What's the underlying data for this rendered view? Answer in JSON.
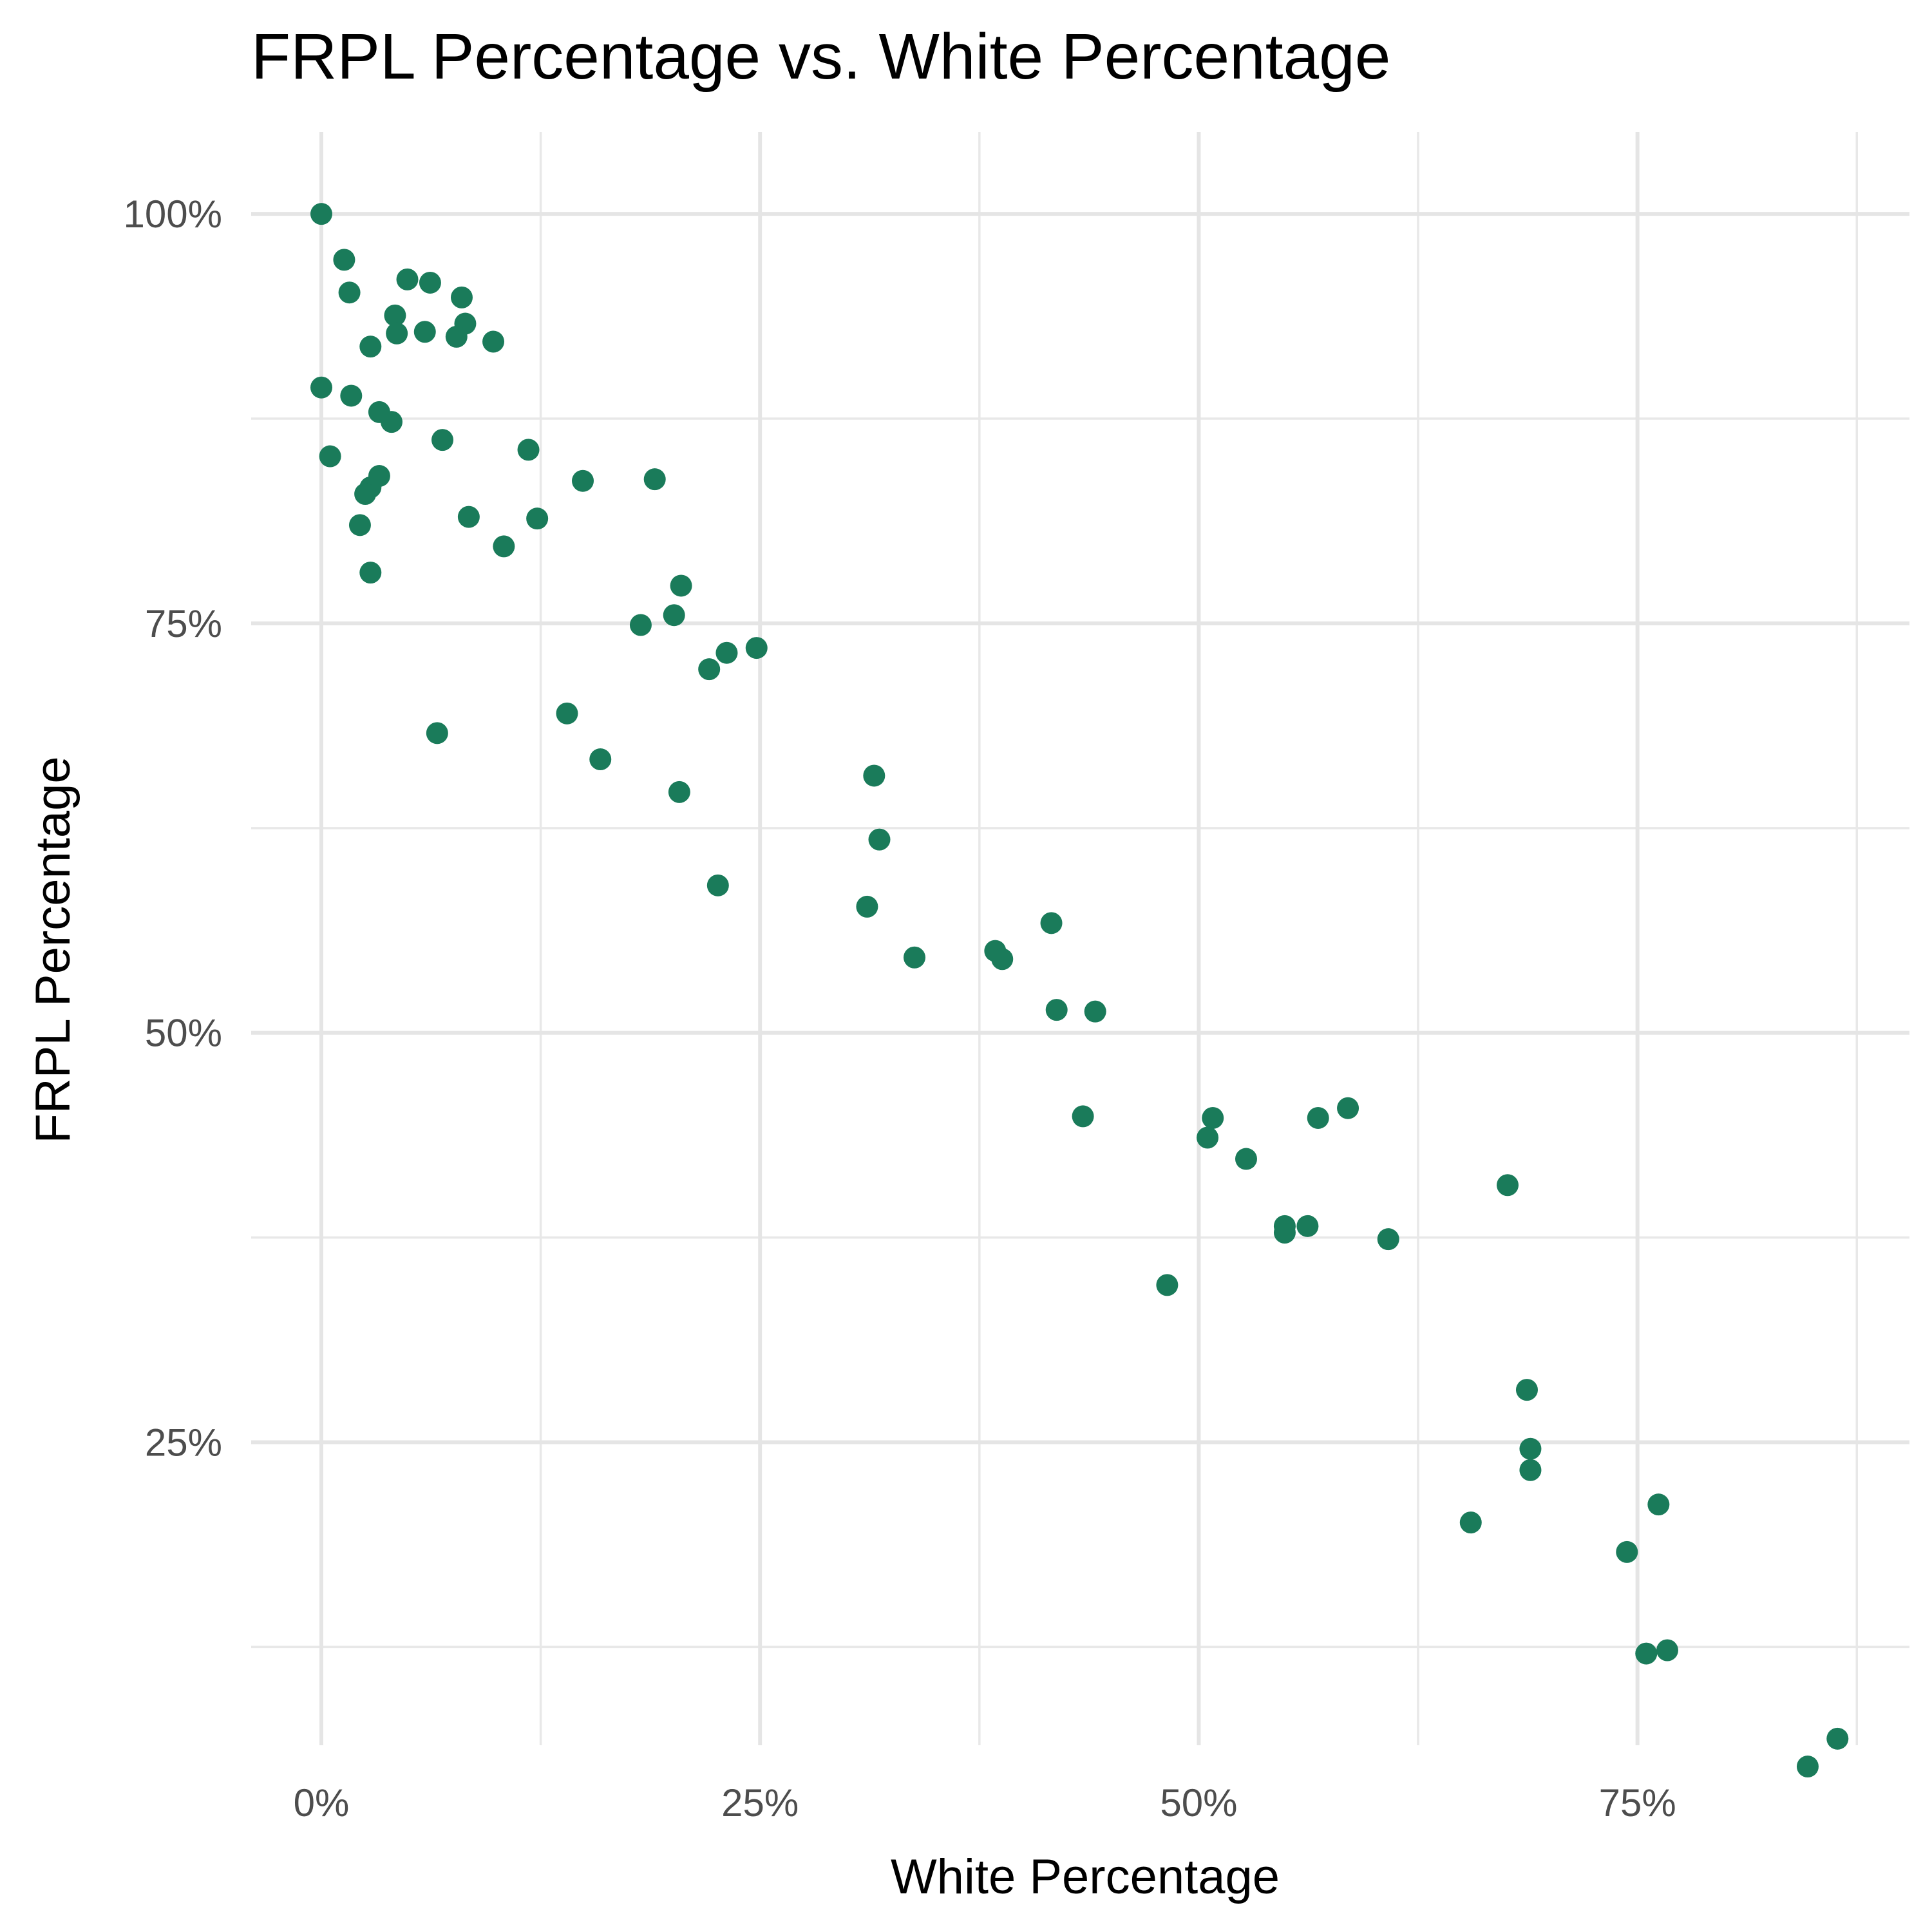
{
  "chart_data": {
    "type": "scatter",
    "title": "FRPL Percentage vs. White Percentage",
    "xlabel": "White Percentage",
    "ylabel": "FRPL Percentage",
    "xlim": [
      -0.04,
      0.905
    ],
    "ylim": [
      0.065,
      1.05
    ],
    "x_ticks": [
      0,
      0.25,
      0.5,
      0.75
    ],
    "x_tick_labels": [
      "0%",
      "25%",
      "50%",
      "75%"
    ],
    "y_ticks": [
      0.25,
      0.5,
      0.75,
      1.0
    ],
    "y_tick_labels": [
      "25%",
      "50%",
      "75%",
      "100%"
    ],
    "x_minor": [
      0.125,
      0.375,
      0.625,
      0.875
    ],
    "y_minor": [
      0.125,
      0.375,
      0.625,
      0.875
    ],
    "grid": true,
    "legend": "none",
    "point_color": "#1a7b5a",
    "points": [
      {
        "x": 0.0,
        "y": 1.0
      },
      {
        "x": 0.013,
        "y": 0.972
      },
      {
        "x": 0.016,
        "y": 0.952
      },
      {
        "x": 0.049,
        "y": 0.96
      },
      {
        "x": 0.062,
        "y": 0.958
      },
      {
        "x": 0.08,
        "y": 0.949
      },
      {
        "x": 0.042,
        "y": 0.938
      },
      {
        "x": 0.082,
        "y": 0.933
      },
      {
        "x": 0.043,
        "y": 0.927
      },
      {
        "x": 0.059,
        "y": 0.928
      },
      {
        "x": 0.077,
        "y": 0.925
      },
      {
        "x": 0.098,
        "y": 0.922
      },
      {
        "x": 0.028,
        "y": 0.919
      },
      {
        "x": 0.0,
        "y": 0.894
      },
      {
        "x": 0.017,
        "y": 0.889
      },
      {
        "x": 0.033,
        "y": 0.879
      },
      {
        "x": 0.04,
        "y": 0.873
      },
      {
        "x": 0.069,
        "y": 0.862
      },
      {
        "x": 0.118,
        "y": 0.856
      },
      {
        "x": 0.005,
        "y": 0.852
      },
      {
        "x": 0.033,
        "y": 0.84
      },
      {
        "x": 0.149,
        "y": 0.837
      },
      {
        "x": 0.19,
        "y": 0.838
      },
      {
        "x": 0.028,
        "y": 0.833
      },
      {
        "x": 0.025,
        "y": 0.829
      },
      {
        "x": 0.084,
        "y": 0.815
      },
      {
        "x": 0.123,
        "y": 0.814
      },
      {
        "x": 0.022,
        "y": 0.81
      },
      {
        "x": 0.104,
        "y": 0.797
      },
      {
        "x": 0.028,
        "y": 0.781
      },
      {
        "x": 0.205,
        "y": 0.773
      },
      {
        "x": 0.201,
        "y": 0.755
      },
      {
        "x": 0.182,
        "y": 0.749
      },
      {
        "x": 0.248,
        "y": 0.735
      },
      {
        "x": 0.231,
        "y": 0.732
      },
      {
        "x": 0.221,
        "y": 0.722
      },
      {
        "x": 0.14,
        "y": 0.695
      },
      {
        "x": 0.066,
        "y": 0.683
      },
      {
        "x": 0.159,
        "y": 0.667
      },
      {
        "x": 0.315,
        "y": 0.657
      },
      {
        "x": 0.204,
        "y": 0.647
      },
      {
        "x": 0.318,
        "y": 0.618
      },
      {
        "x": 0.226,
        "y": 0.59
      },
      {
        "x": 0.311,
        "y": 0.577
      },
      {
        "x": 0.416,
        "y": 0.567
      },
      {
        "x": 0.338,
        "y": 0.546
      },
      {
        "x": 0.384,
        "y": 0.55
      },
      {
        "x": 0.388,
        "y": 0.545
      },
      {
        "x": 0.419,
        "y": 0.514
      },
      {
        "x": 0.441,
        "y": 0.513
      },
      {
        "x": 0.434,
        "y": 0.449
      },
      {
        "x": 0.508,
        "y": 0.448
      },
      {
        "x": 0.505,
        "y": 0.436
      },
      {
        "x": 0.568,
        "y": 0.448
      },
      {
        "x": 0.585,
        "y": 0.454
      },
      {
        "x": 0.527,
        "y": 0.423
      },
      {
        "x": 0.676,
        "y": 0.407
      },
      {
        "x": 0.549,
        "y": 0.382
      },
      {
        "x": 0.549,
        "y": 0.378
      },
      {
        "x": 0.562,
        "y": 0.382
      },
      {
        "x": 0.608,
        "y": 0.374
      },
      {
        "x": 0.482,
        "y": 0.346
      },
      {
        "x": 0.687,
        "y": 0.282
      },
      {
        "x": 0.689,
        "y": 0.246
      },
      {
        "x": 0.689,
        "y": 0.233
      },
      {
        "x": 0.655,
        "y": 0.201
      },
      {
        "x": 0.762,
        "y": 0.212
      },
      {
        "x": 0.744,
        "y": 0.183
      },
      {
        "x": 0.755,
        "y": 0.121
      },
      {
        "x": 0.767,
        "y": 0.123
      },
      {
        "x": 0.864,
        "y": 0.069
      },
      {
        "x": 0.847,
        "y": 0.052
      }
    ]
  }
}
